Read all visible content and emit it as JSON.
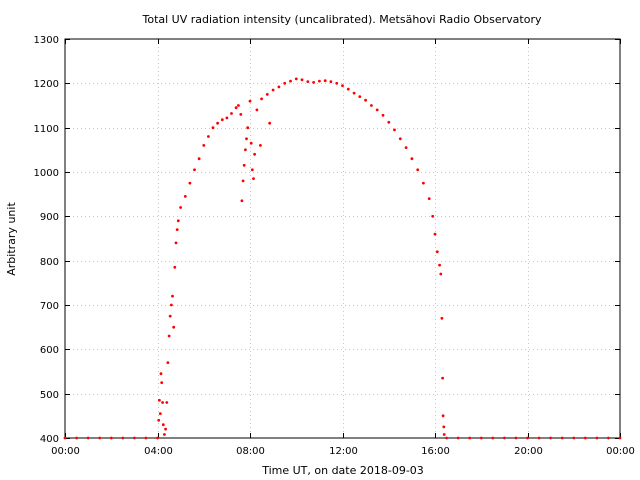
{
  "chart_data": {
    "type": "scatter",
    "title": "Total UV radiation intensity (uncalibrated). Metsähovi Radio Observatory",
    "xlabel": "Time UT, on date 2018-09-03",
    "ylabel": "Arbitrary unit",
    "xlim": [
      0,
      24
    ],
    "ylim": [
      400,
      1300
    ],
    "x_ticks": [
      0,
      4,
      8,
      12,
      16,
      20,
      24
    ],
    "x_tick_labels": [
      "00:00",
      "04:00",
      "08:00",
      "12:00",
      "16:00",
      "20:00",
      "00:00"
    ],
    "y_ticks": [
      400,
      500,
      600,
      700,
      800,
      900,
      1000,
      1100,
      1200,
      1300
    ],
    "y_tick_labels": [
      "400",
      "500",
      "600",
      "700",
      "800",
      "900",
      "1000",
      "1100",
      "1200",
      "1300"
    ],
    "grid": true,
    "grid_style": "dotted",
    "marker_color": "#ff0000",
    "series": [
      {
        "points": [
          [
            0.0,
            400
          ],
          [
            0.5,
            400
          ],
          [
            1.0,
            400
          ],
          [
            1.5,
            400
          ],
          [
            2.0,
            400
          ],
          [
            2.5,
            400
          ],
          [
            3.0,
            400
          ],
          [
            3.5,
            400
          ],
          [
            4.0,
            400
          ],
          [
            4.05,
            440
          ],
          [
            4.08,
            485
          ],
          [
            4.12,
            455
          ],
          [
            4.15,
            545
          ],
          [
            4.18,
            525
          ],
          [
            4.22,
            480
          ],
          [
            4.25,
            430
          ],
          [
            4.3,
            408
          ],
          [
            4.35,
            420
          ],
          [
            4.4,
            480
          ],
          [
            4.45,
            570
          ],
          [
            4.5,
            630
          ],
          [
            4.55,
            675
          ],
          [
            4.6,
            700
          ],
          [
            4.65,
            720
          ],
          [
            4.7,
            650
          ],
          [
            4.75,
            785
          ],
          [
            4.8,
            840
          ],
          [
            4.85,
            870
          ],
          [
            4.9,
            890
          ],
          [
            5.0,
            920
          ],
          [
            5.2,
            945
          ],
          [
            5.4,
            975
          ],
          [
            5.6,
            1005
          ],
          [
            5.8,
            1030
          ],
          [
            6.0,
            1060
          ],
          [
            6.2,
            1080
          ],
          [
            6.4,
            1100
          ],
          [
            6.6,
            1110
          ],
          [
            6.8,
            1118
          ],
          [
            7.0,
            1122
          ],
          [
            7.2,
            1132
          ],
          [
            7.4,
            1145
          ],
          [
            7.5,
            1150
          ],
          [
            7.6,
            1130
          ],
          [
            7.65,
            935
          ],
          [
            7.7,
            980
          ],
          [
            7.75,
            1015
          ],
          [
            7.8,
            1050
          ],
          [
            7.85,
            1075
          ],
          [
            7.9,
            1100
          ],
          [
            8.0,
            1160
          ],
          [
            8.05,
            1065
          ],
          [
            8.1,
            1005
          ],
          [
            8.15,
            985
          ],
          [
            8.2,
            1040
          ],
          [
            8.3,
            1140
          ],
          [
            8.45,
            1060
          ],
          [
            8.5,
            1165
          ],
          [
            8.75,
            1175
          ],
          [
            8.85,
            1110
          ],
          [
            9.0,
            1185
          ],
          [
            9.25,
            1192
          ],
          [
            9.5,
            1200
          ],
          [
            9.75,
            1205
          ],
          [
            10.0,
            1210
          ],
          [
            10.25,
            1208
          ],
          [
            10.5,
            1204
          ],
          [
            10.75,
            1202
          ],
          [
            11.0,
            1205
          ],
          [
            11.25,
            1206
          ],
          [
            11.5,
            1204
          ],
          [
            11.75,
            1200
          ],
          [
            12.0,
            1195
          ],
          [
            12.25,
            1187
          ],
          [
            12.5,
            1178
          ],
          [
            12.75,
            1170
          ],
          [
            13.0,
            1162
          ],
          [
            13.25,
            1150
          ],
          [
            13.5,
            1140
          ],
          [
            13.75,
            1128
          ],
          [
            14.0,
            1112
          ],
          [
            14.25,
            1095
          ],
          [
            14.5,
            1075
          ],
          [
            14.75,
            1055
          ],
          [
            15.0,
            1030
          ],
          [
            15.25,
            1005
          ],
          [
            15.5,
            975
          ],
          [
            15.75,
            940
          ],
          [
            15.9,
            900
          ],
          [
            16.0,
            860
          ],
          [
            16.1,
            820
          ],
          [
            16.2,
            790
          ],
          [
            16.25,
            770
          ],
          [
            16.3,
            670
          ],
          [
            16.33,
            535
          ],
          [
            16.35,
            450
          ],
          [
            16.38,
            425
          ],
          [
            16.4,
            408
          ],
          [
            16.5,
            400
          ],
          [
            17.0,
            400
          ],
          [
            17.5,
            400
          ],
          [
            18.0,
            400
          ],
          [
            18.5,
            400
          ],
          [
            19.0,
            400
          ],
          [
            19.5,
            400
          ],
          [
            20.0,
            400
          ],
          [
            20.5,
            400
          ],
          [
            21.0,
            400
          ],
          [
            21.5,
            400
          ],
          [
            22.0,
            400
          ],
          [
            22.5,
            400
          ],
          [
            23.0,
            400
          ],
          [
            23.5,
            400
          ],
          [
            24.0,
            400
          ]
        ]
      }
    ]
  }
}
